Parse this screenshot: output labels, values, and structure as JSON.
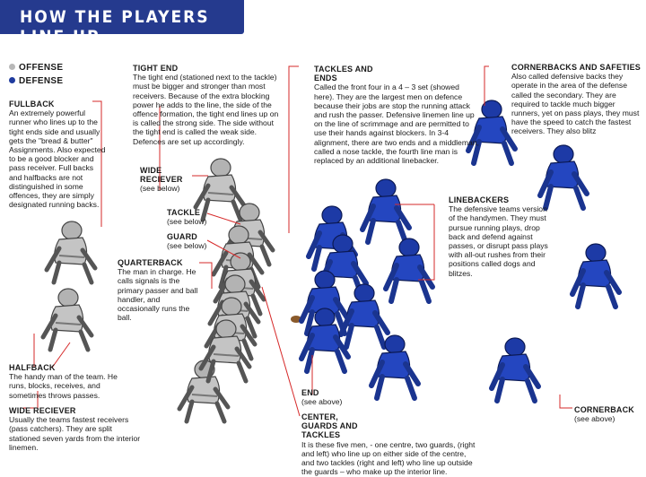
{
  "title": "HOW THE PLAYERS LINE UP",
  "legend": [
    {
      "label": "OFFENSE",
      "color": "#b8b8b8"
    },
    {
      "label": "DEFENSE",
      "color": "#1f3b9e"
    }
  ],
  "colors": {
    "banner": "#253a8e",
    "offense": "#b8b8b8",
    "defense": "#1f3b9e",
    "leader": "#d62828"
  },
  "labels": {
    "fullback": {
      "title": "FULLBACK",
      "body": "An extremely powerful runner who lines up to the tight ends side and usually gets the \"bread & butter\" Assignments. Also expected to be a good blocker and pass receiver. Full backs and halfbacks are not distinguished in some offences, they are simply designated running backs."
    },
    "tight_end": {
      "title": "TIGHT END",
      "body": "The tight end (stationed next to the tackle) must be bigger and stronger than most receivers. Because of the extra blocking power he adds to the line, the side of the offence formation, the tight end lines up on is called the strong side. The side without the tight end is called the weak side. Defences are set up accordingly."
    },
    "tackles_ends": {
      "title": "TACKLES AND ENDS",
      "body": "Called the front four in a 4 – 3 set (showed here). They are the largest men on defence because their jobs are stop the running attack and rush the passer. Defensive linemen line up on the line of scrimmage and are permitted to use their hands against blockers. In 3-4 alignment, there are two ends and a middleman, called a nose tackle, the fourth line man is replaced by an additional linebacker."
    },
    "cornerbacks": {
      "title": "CORNERBACKS AND SAFETIES",
      "body": "Also called defensive backs they operate in the area of the defense called the secondary. They are required to tackle much bigger runners, yet on pass plays, they must have the speed to catch the fastest receivers. They also blitz"
    },
    "wide_receiver_top": {
      "title": "WIDE RECIEVER",
      "body": "(see below)"
    },
    "tackle": {
      "title": "TACKLE",
      "body": "(see below)"
    },
    "guard": {
      "title": "GUARD",
      "body": "(see below)"
    },
    "linebackers": {
      "title": "LINEBACKERS",
      "body": "The defensive teams version of the handymen. They must pursue running plays, drop back and defend against passes, or disrupt pass plays with all-out rushes from their positions called dogs and blitzes."
    },
    "quarterback": {
      "title": "QUARTERBACK",
      "body": "The man in charge. He calls signals is the primary passer and ball handler, and occasionally runs the ball."
    },
    "halfback": {
      "title": "HALFBACK",
      "body": "The handy man of the team. He runs, blocks, receives, and sometimes throws passes."
    },
    "wide_receiver_bottom": {
      "title": "WIDE RECIEVER",
      "body": "Usually the teams fastest receivers (pass catchers). They are split stationed seven yards from the interior linemen."
    },
    "end": {
      "title": "END",
      "body": "(see above)"
    },
    "center": {
      "title": "CENTER, GUARDS AND TACKLES",
      "body": "It is these five men, - one centre, two guards, (right and left) who line up on either side of the centre, and two tackles (right and left) who line up outside the guards – who make up the interior line."
    },
    "cornerback": {
      "title": "CORNERBACK",
      "body": "(see above)"
    }
  }
}
